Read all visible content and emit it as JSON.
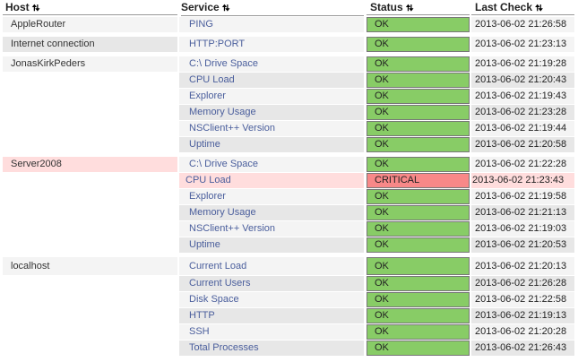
{
  "headers": {
    "host": "Host",
    "service": "Service",
    "status": "Status",
    "last_check": "Last Check",
    "sort_arrows": "🠅🠇"
  },
  "colors": {
    "ok": "#88cc66",
    "critical": "#f88888",
    "critical_row": "#ffdddd",
    "link": "#4a5e9c"
  },
  "groups": [
    {
      "host": "AppleRouter",
      "state": "ok",
      "services": [
        {
          "name": "PING",
          "status": "OK",
          "last_check": "2013-06-02 21:26:58"
        }
      ]
    },
    {
      "host": "Internet connection",
      "state": "alt",
      "services": [
        {
          "name": "HTTP:PORT",
          "status": "OK",
          "last_check": "2013-06-02 21:23:13"
        }
      ]
    },
    {
      "host": "JonasKirkPeders",
      "state": "ok",
      "services": [
        {
          "name": "C:\\ Drive Space",
          "status": "OK",
          "last_check": "2013-06-02 21:19:28"
        },
        {
          "name": "CPU Load",
          "status": "OK",
          "last_check": "2013-06-02 21:20:43"
        },
        {
          "name": "Explorer",
          "status": "OK",
          "last_check": "2013-06-02 21:19:43"
        },
        {
          "name": "Memory Usage",
          "status": "OK",
          "last_check": "2013-06-02 21:23:28"
        },
        {
          "name": "NSClient++ Version",
          "status": "OK",
          "last_check": "2013-06-02 21:19:44"
        },
        {
          "name": "Uptime",
          "status": "OK",
          "last_check": "2013-06-02 21:20:58"
        }
      ]
    },
    {
      "host": "Server2008",
      "state": "crit",
      "services": [
        {
          "name": "C:\\ Drive Space",
          "status": "OK",
          "last_check": "2013-06-02 21:22:28"
        },
        {
          "name": "CPU Load",
          "status": "CRITICAL",
          "last_check": "2013-06-02 21:23:43"
        },
        {
          "name": "Explorer",
          "status": "OK",
          "last_check": "2013-06-02 21:19:58"
        },
        {
          "name": "Memory Usage",
          "status": "OK",
          "last_check": "2013-06-02 21:21:13"
        },
        {
          "name": "NSClient++ Version",
          "status": "OK",
          "last_check": "2013-06-02 21:19:03"
        },
        {
          "name": "Uptime",
          "status": "OK",
          "last_check": "2013-06-02 21:20:53"
        }
      ]
    },
    {
      "host": "localhost",
      "state": "ok",
      "icon": "debian-logo-icon",
      "services": [
        {
          "name": "Current Load",
          "status": "OK",
          "last_check": "2013-06-02 21:20:13"
        },
        {
          "name": "Current Users",
          "status": "OK",
          "last_check": "2013-06-02 21:26:28"
        },
        {
          "name": "Disk Space",
          "status": "OK",
          "last_check": "2013-06-02 21:22:58"
        },
        {
          "name": "HTTP",
          "status": "OK",
          "last_check": "2013-06-02 21:19:13"
        },
        {
          "name": "SSH",
          "status": "OK",
          "last_check": "2013-06-02 21:20:28"
        },
        {
          "name": "Total Processes",
          "status": "OK",
          "last_check": "2013-06-02 21:26:43"
        }
      ]
    }
  ]
}
